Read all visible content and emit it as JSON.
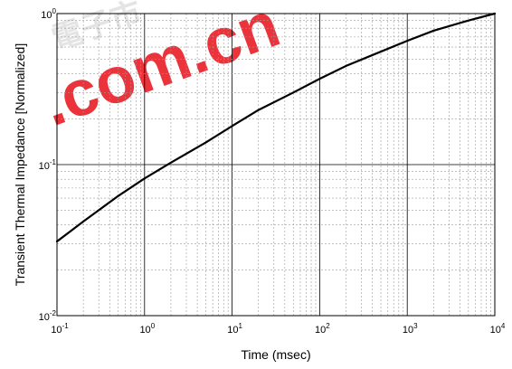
{
  "chart_data": {
    "type": "line",
    "title": "",
    "xlabel": "Time (msec)",
    "ylabel": "Transient Thermal Impedance [Normalized]",
    "xscale": "log",
    "yscale": "log",
    "xlim": [
      0.1,
      10000
    ],
    "ylim": [
      0.01,
      1
    ],
    "grid": "major and minor",
    "x_ticks": [
      {
        "base": "10",
        "exp": "-1"
      },
      {
        "base": "10",
        "exp": "0"
      },
      {
        "base": "10",
        "exp": "1"
      },
      {
        "base": "10",
        "exp": "2"
      },
      {
        "base": "10",
        "exp": "3"
      },
      {
        "base": "10",
        "exp": "4"
      }
    ],
    "y_ticks": [
      {
        "base": "10",
        "exp": "-2"
      },
      {
        "base": "10",
        "exp": "-1"
      },
      {
        "base": "10",
        "exp": "0"
      }
    ],
    "series": [
      {
        "color": "#000000",
        "x": [
          0.1,
          0.2,
          0.5,
          1,
          2,
          5,
          10,
          20,
          50,
          100,
          200,
          500,
          1000,
          2000,
          5000,
          10000
        ],
        "y": [
          0.031,
          0.042,
          0.062,
          0.081,
          0.103,
          0.14,
          0.18,
          0.23,
          0.3,
          0.37,
          0.45,
          0.56,
          0.66,
          0.77,
          0.9,
          1.0
        ]
      }
    ]
  },
  "watermark": {
    "text": ".com.cn",
    "color": "#e8101a",
    "faint_text": "電子市"
  }
}
